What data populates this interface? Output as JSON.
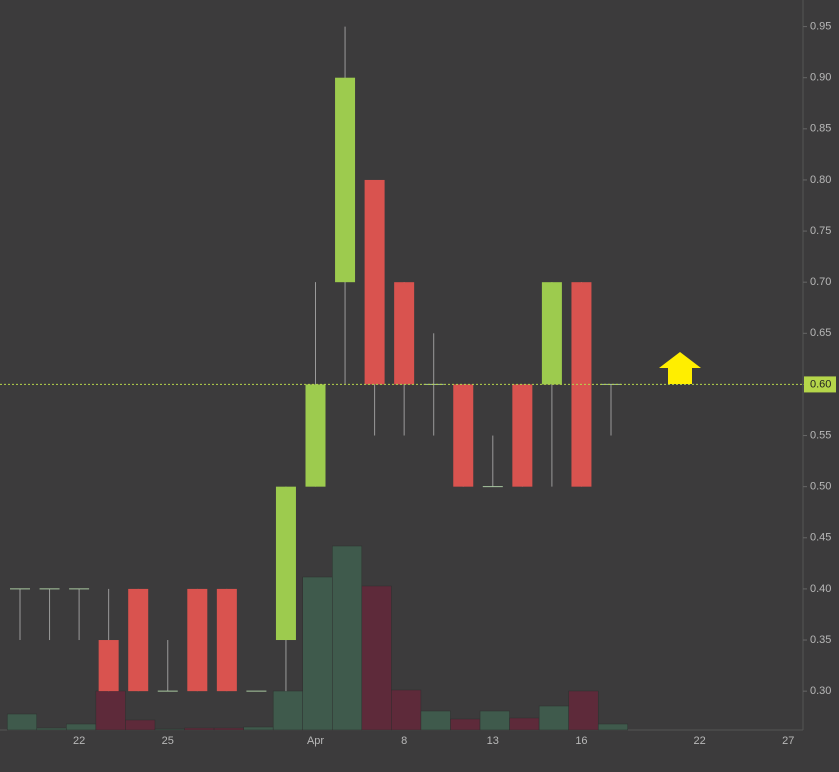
{
  "chart_data": {
    "type": "candlestick",
    "categories": [
      null,
      null,
      "22",
      null,
      null,
      "25",
      null,
      null,
      null,
      null,
      "Apr",
      null,
      null,
      "8",
      null,
      null,
      "13",
      null,
      null,
      "16",
      null,
      null,
      null,
      "22",
      null,
      null,
      "27"
    ],
    "open": [
      0.4,
      0.4,
      0.4,
      0.35,
      0.4,
      0.3,
      0.4,
      0.4,
      0.3,
      0.35,
      0.5,
      0.7,
      0.8,
      0.7,
      0.6,
      0.6,
      0.5,
      0.6,
      0.6,
      0.7,
      0.6,
      null,
      null,
      null,
      null,
      null,
      null
    ],
    "high": [
      0.4,
      0.4,
      0.4,
      0.4,
      0.4,
      0.35,
      0.4,
      0.4,
      0.3,
      0.5,
      0.7,
      0.95,
      0.8,
      0.7,
      0.65,
      0.6,
      0.55,
      0.6,
      0.7,
      0.7,
      0.6,
      null,
      null,
      null,
      null,
      null,
      null
    ],
    "low": [
      0.35,
      0.35,
      0.35,
      0.3,
      0.3,
      0.3,
      0.3,
      0.3,
      0.3,
      0.3,
      0.5,
      0.6,
      0.55,
      0.55,
      0.55,
      0.5,
      0.5,
      0.5,
      0.5,
      0.5,
      0.55,
      null,
      null,
      null,
      null,
      null,
      null
    ],
    "close": [
      0.4,
      0.4,
      0.4,
      0.3,
      0.3,
      0.3,
      0.3,
      0.3,
      0.3,
      0.5,
      0.6,
      0.9,
      0.6,
      0.6,
      0.6,
      0.5,
      0.5,
      0.5,
      0.7,
      0.5,
      0.6,
      null,
      null,
      null,
      null,
      null,
      null
    ],
    "volume": [
      16,
      2,
      6,
      39,
      10,
      1,
      2,
      2,
      3,
      39,
      153,
      184,
      144,
      40,
      19,
      11,
      19,
      12,
      24,
      39,
      6,
      null,
      null,
      null,
      null,
      null,
      null
    ],
    "vlim": [
      0,
      730
    ],
    "up_color": "#9dcb4e",
    "down_color": "#d9534f",
    "up_volume_color": "#3f5a4c",
    "down_volume_color": "#5e2a3a",
    "ylim": [
      0.262,
      0.976
    ],
    "yticks": [
      {
        "value": 0.3,
        "label": "0.30"
      },
      {
        "value": 0.35,
        "label": "0.35"
      },
      {
        "value": 0.4,
        "label": "0.40"
      },
      {
        "value": 0.45,
        "label": "0.45"
      },
      {
        "value": 0.5,
        "label": "0.50"
      },
      {
        "value": 0.55,
        "label": "0.55"
      },
      {
        "value": 0.6,
        "label": "0.60"
      },
      {
        "value": 0.65,
        "label": "0.65"
      },
      {
        "value": 0.7,
        "label": "0.70"
      },
      {
        "value": 0.75,
        "label": "0.75"
      },
      {
        "value": 0.8,
        "label": "0.80"
      },
      {
        "value": 0.85,
        "label": "0.85"
      },
      {
        "value": 0.9,
        "label": "0.90"
      },
      {
        "value": 0.95,
        "label": "0.95"
      }
    ],
    "last_price": {
      "value": 0.6,
      "label": "0.60"
    },
    "price_line_color": "#b5d64a"
  }
}
